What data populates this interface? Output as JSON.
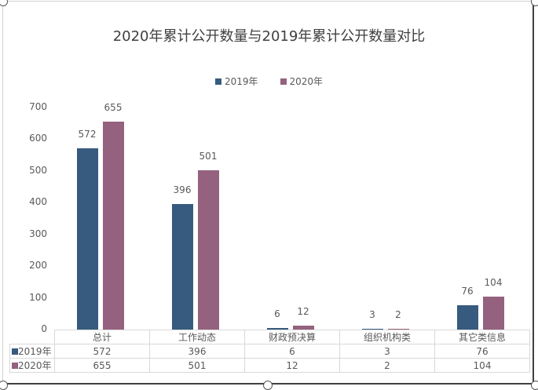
{
  "chart_data": {
    "type": "bar",
    "title": "2020年累计公开数量与2019年累计公开数量对比",
    "categories": [
      "总计",
      "工作动态",
      "财政预决算",
      "组织机构类",
      "其它类信息"
    ],
    "series": [
      {
        "name": "2019年",
        "color": "#365B7E",
        "values": [
          572,
          396,
          6,
          3,
          76
        ]
      },
      {
        "name": "2020年",
        "color": "#94627E",
        "values": [
          655,
          501,
          12,
          2,
          104
        ]
      }
    ],
    "xlabel": "",
    "ylabel": "",
    "ylim": [
      0,
      700
    ],
    "yticks": [
      "0",
      "100",
      "200",
      "300",
      "400",
      "500",
      "600",
      "700"
    ],
    "grid": false,
    "legend_position": "top",
    "data_table": true
  },
  "legend": [
    {
      "label": "2019年",
      "color": "#365B7E"
    },
    {
      "label": "2020年",
      "color": "#94627E"
    }
  ],
  "table": {
    "headers": [
      "总计",
      "工作动态",
      "财政预决算",
      "组织机构类",
      "其它类信息"
    ],
    "rows": [
      {
        "label": "2019年",
        "color": "#365B7E",
        "values": [
          "572",
          "396",
          "6",
          "3",
          "76"
        ]
      },
      {
        "label": "2020年",
        "color": "#94627E",
        "values": [
          "655",
          "501",
          "12",
          "2",
          "104"
        ]
      }
    ]
  }
}
